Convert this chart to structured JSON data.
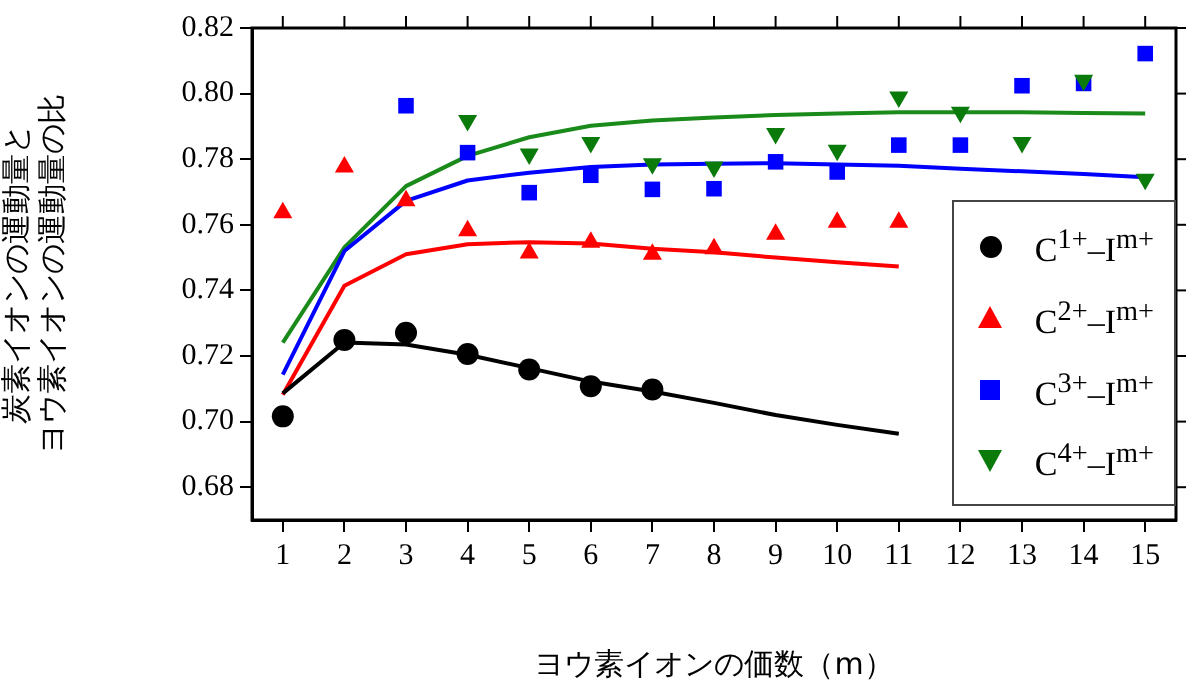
{
  "chart_data": {
    "type": "scatter",
    "xlabel": "ヨウ素イオンの価数（m）",
    "ylabel": "炭素イオンの運動量とヨウ素イオンの運動量の比",
    "xlim": [
      0.5,
      15.5
    ],
    "xticks": [
      1,
      2,
      3,
      4,
      5,
      6,
      7,
      8,
      9,
      10,
      11,
      12,
      13,
      14,
      15
    ],
    "ylim": [
      0.67,
      0.82
    ],
    "yticks": [
      0.68,
      {
        "value": 0.7,
        "label": "0.70"
      },
      0.72,
      0.74,
      0.76,
      0.78,
      {
        "value": 0.8,
        "label": "0.80"
      },
      0.82
    ],
    "legend": "bottom right",
    "series": [
      {
        "type": "line",
        "marker": "none",
        "color": "#000000",
        "x": [
          1,
          2,
          3,
          4,
          5,
          6,
          7,
          8,
          9,
          10,
          11
        ],
        "values": [
          0.7086,
          0.7241,
          0.7235,
          0.7204,
          0.7163,
          0.7122,
          0.7092,
          0.7057,
          0.702,
          0.699,
          0.6963
        ]
      },
      {
        "type": "line",
        "marker": "none",
        "color": "#ff0000",
        "x": [
          1,
          2,
          3,
          4,
          5,
          6,
          7,
          8,
          9,
          10,
          11
        ],
        "values": [
          0.7082,
          0.7414,
          0.751,
          0.7541,
          0.7547,
          0.7543,
          0.7527,
          0.7516,
          0.75,
          0.7486,
          0.7473
        ]
      },
      {
        "type": "line",
        "marker": "none",
        "color": "#0000ff",
        "x": [
          1,
          2,
          3,
          4,
          5,
          6,
          7,
          8,
          9,
          10,
          11,
          12,
          13,
          14,
          15
        ],
        "values": [
          0.7143,
          0.752,
          0.7673,
          0.7735,
          0.7759,
          0.7776,
          0.7784,
          0.7786,
          0.7788,
          0.7784,
          0.778,
          0.7771,
          0.7763,
          0.7755,
          0.7745
        ]
      },
      {
        "type": "line",
        "marker": "none",
        "color": "#1a8a1a",
        "x": [
          1,
          2,
          3,
          4,
          5,
          6,
          7,
          8,
          9,
          10,
          11,
          12,
          13,
          14,
          15
        ],
        "values": [
          0.7241,
          0.7531,
          0.7718,
          0.781,
          0.7867,
          0.7902,
          0.7918,
          0.7927,
          0.7935,
          0.7939,
          0.7943,
          0.7943,
          0.7943,
          0.7941,
          0.7939
        ]
      },
      {
        "name": "C$^{1+}$–I$^{m+}$",
        "marker": "circle",
        "color": "#000000",
        "x": [
          1,
          2,
          3,
          4,
          5,
          6,
          7
        ],
        "values": [
          0.7016,
          0.7249,
          0.7271,
          0.7206,
          0.7159,
          0.7108,
          0.7098
        ]
      },
      {
        "name": "C$^{2+}$–I$^{m+}$",
        "marker": "triangle",
        "color": "#ff0000",
        "x": [
          1,
          2,
          3,
          4,
          5,
          6,
          7,
          8,
          9,
          10,
          11
        ],
        "values": [
          0.7637,
          0.7776,
          0.7673,
          0.7582,
          0.7514,
          0.7547,
          0.751,
          0.7527,
          0.7571,
          0.7608,
          0.7608
        ]
      },
      {
        "name": "C$^{3+}$–I$^{m+}$",
        "marker": "square",
        "color": "#0000ff",
        "x": [
          3,
          4,
          5,
          6,
          7,
          8,
          9,
          10,
          11,
          12,
          13,
          14,
          15
        ],
        "values": [
          0.7963,
          0.782,
          0.7698,
          0.7751,
          0.7708,
          0.771,
          0.7792,
          0.7761,
          0.7843,
          0.7843,
          0.8024,
          0.8031,
          0.8122
        ]
      },
      {
        "name": "C$^{4+}$–I$^{m+}$",
        "marker": "triangle-down",
        "color": "#0a7a0a",
        "x": [
          4,
          5,
          6,
          7,
          8,
          9,
          10,
          11,
          12,
          13,
          14,
          15
        ],
        "values": [
          0.7918,
          0.7816,
          0.7851,
          0.7786,
          0.7776,
          0.7878,
          0.7827,
          0.799,
          0.7943,
          0.7851,
          0.8041,
          0.7739
        ]
      }
    ]
  }
}
